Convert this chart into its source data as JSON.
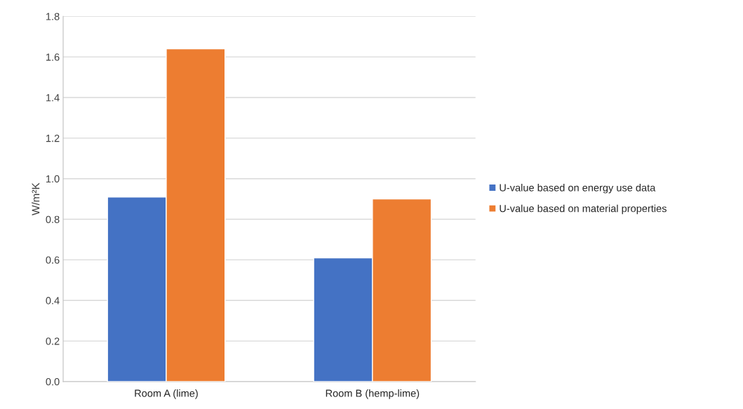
{
  "chart_data": {
    "type": "bar",
    "ylabel": "W/m²K",
    "categories": [
      "Room A (lime)",
      "Room B (hemp-lime)"
    ],
    "series": [
      {
        "name": "U-value based on energy use data",
        "color": "#4472c4",
        "values": [
          0.91,
          0.61
        ]
      },
      {
        "name": "U-value based on material properties",
        "color": "#ed7d31",
        "values": [
          1.64,
          0.9
        ]
      }
    ],
    "ylim": [
      0,
      1.8
    ],
    "yticks": [
      {
        "value": 0,
        "label": "0.0"
      },
      0.2,
      0.4,
      0.6,
      0.8,
      {
        "value": 1,
        "label": "1.0"
      },
      1.2,
      1.4,
      1.6,
      1.8
    ],
    "grid": "y",
    "legend": "right"
  }
}
